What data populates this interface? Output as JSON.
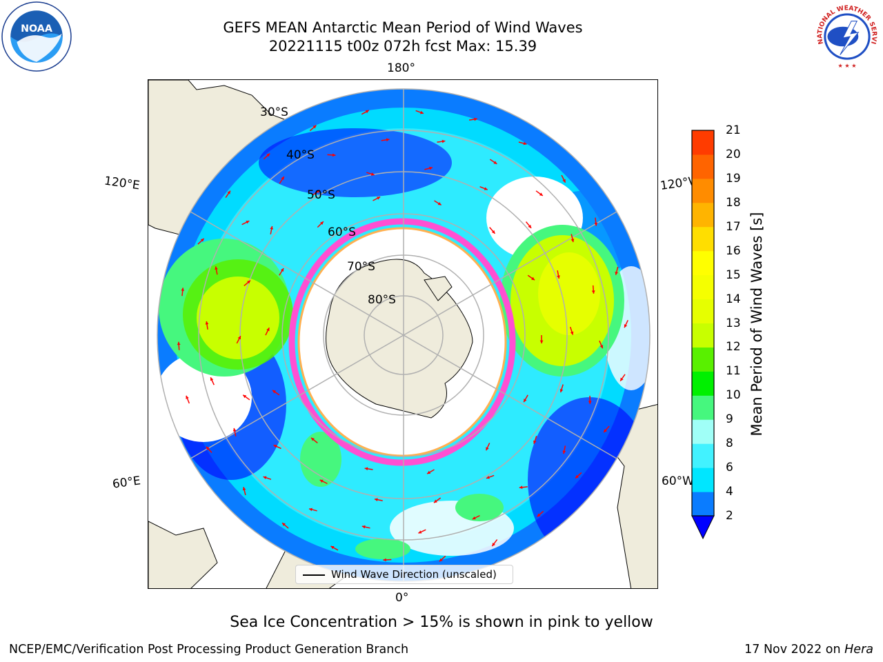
{
  "title": {
    "line1": "GEFS MEAN Antarctic Mean Period of Wind Waves",
    "line2": "20221115 t00z 072h fcst   Max: 15.39"
  },
  "logos": {
    "left": "noaa-logo",
    "right": "nws-logo"
  },
  "map": {
    "projection": "south-polar-stereographic",
    "longitude_labels": {
      "top": "180°",
      "bottom": "0°",
      "upper_left": "120°E",
      "upper_right": "120°W",
      "lower_left": "60°E",
      "lower_right": "60°W"
    },
    "latitude_labels": [
      "30°S",
      "40°S",
      "50°S",
      "60°S",
      "70°S",
      "80°S"
    ],
    "legend": "Wind Wave Direction (unscaled)",
    "land_color": "#efecdc",
    "arrow_color": "#ff0000",
    "grid_color": "#b0b0b0"
  },
  "colorbar": {
    "label": "Mean Period of Wind Waves [s]",
    "ticks": [
      "2",
      "4",
      "6",
      "8",
      "9",
      "10",
      "11",
      "12",
      "13",
      "14",
      "15",
      "16",
      "17",
      "18",
      "19",
      "20",
      "21"
    ],
    "colors": [
      "#0a7cff",
      "#00e6ff",
      "#42f2ff",
      "#a0fff7",
      "#46f77e",
      "#00f000",
      "#59f000",
      "#c8ff00",
      "#e6ff00",
      "#f5ff00",
      "#ffff00",
      "#ffde00",
      "#ffb400",
      "#ff8c00",
      "#ff6400",
      "#ff3c00",
      "#ff0000"
    ],
    "extend_color": "#0000ff"
  },
  "notes": {
    "sea_ice": "Sea Ice Concentration > 15% is shown in pink to yellow"
  },
  "footer": {
    "left": "NCEP/EMC/Verification Post Processing Product Generation Branch",
    "right_date": "17 Nov 2022 on ",
    "right_machine": "Hera"
  }
}
